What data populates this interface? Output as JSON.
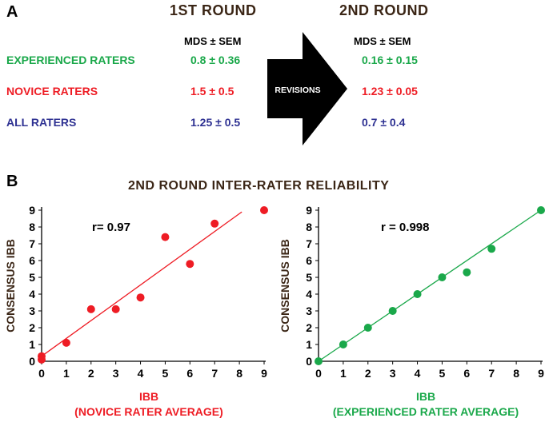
{
  "panel_a": {
    "letter": "A",
    "round1_title": "1ST ROUND",
    "round2_title": "2ND ROUND",
    "col_header": "MDS ± SEM",
    "arrow_label": "REVISIONS",
    "rows": [
      {
        "label": "EXPERIENCED RATERS",
        "round1": "0.8 ± 0.36",
        "round2": "0.16 ± 0.15",
        "color": "#1aa84a"
      },
      {
        "label": "NOVICE RATERS",
        "round1": "1.5 ± 0.5",
        "round2": "1.23 ± 0.05",
        "color": "#ee1c24"
      },
      {
        "label": "ALL RATERS",
        "round1": "1.25 ± 0.5",
        "round2": "0.7 ± 0.4",
        "color": "#2e3192"
      }
    ]
  },
  "panel_b": {
    "letter": "B",
    "title": "2ND ROUND INTER-RATER RELIABILITY"
  },
  "chart_data": [
    {
      "type": "scatter",
      "color": "#ee1c24",
      "annotation": "r= 0.97",
      "xlabel_line1": "IBB",
      "xlabel_line2": "(NOVICE RATER AVERAGE)",
      "ylabel": "CONSENSUS IBB",
      "xlim": [
        0,
        9
      ],
      "ylim": [
        0,
        9
      ],
      "xticks": [
        "0",
        "1",
        "2",
        "3",
        "4",
        "5",
        "6",
        "7",
        "8",
        "9"
      ],
      "yticks": [
        "0",
        "1",
        "2",
        "3",
        "4",
        "5",
        "6",
        "7",
        "8",
        "9"
      ],
      "points": [
        {
          "x": 0,
          "y": 0.1
        },
        {
          "x": 0,
          "y": 0.3
        },
        {
          "x": 1,
          "y": 1.1
        },
        {
          "x": 2,
          "y": 3.1
        },
        {
          "x": 3,
          "y": 3.1
        },
        {
          "x": 4,
          "y": 3.8
        },
        {
          "x": 5,
          "y": 7.4
        },
        {
          "x": 6,
          "y": 5.8
        },
        {
          "x": 7,
          "y": 8.2
        },
        {
          "x": 9,
          "y": 9
        }
      ],
      "trendline": {
        "x": [
          0,
          8.1
        ],
        "y": [
          0.3,
          8.9
        ]
      }
    },
    {
      "type": "scatter",
      "color": "#1aa84a",
      "annotation": "r = 0.998",
      "xlabel_line1": "IBB",
      "xlabel_line2": "(EXPERIENCED RATER AVERAGE)",
      "ylabel": "CONSENSUS IBB",
      "xlim": [
        0,
        9
      ],
      "ylim": [
        0,
        9
      ],
      "xticks": [
        "0",
        "1",
        "2",
        "3",
        "4",
        "5",
        "6",
        "7",
        "8",
        "9"
      ],
      "yticks": [
        "0",
        "1",
        "2",
        "3",
        "4",
        "5",
        "6",
        "7",
        "8",
        "9"
      ],
      "points": [
        {
          "x": 0,
          "y": 0
        },
        {
          "x": 1,
          "y": 1
        },
        {
          "x": 2,
          "y": 2
        },
        {
          "x": 3,
          "y": 3
        },
        {
          "x": 4,
          "y": 4
        },
        {
          "x": 5,
          "y": 5
        },
        {
          "x": 6,
          "y": 5.3
        },
        {
          "x": 7,
          "y": 6.7
        },
        {
          "x": 9,
          "y": 9
        }
      ],
      "trendline": {
        "x": [
          0,
          9
        ],
        "y": [
          0,
          9
        ]
      }
    }
  ]
}
